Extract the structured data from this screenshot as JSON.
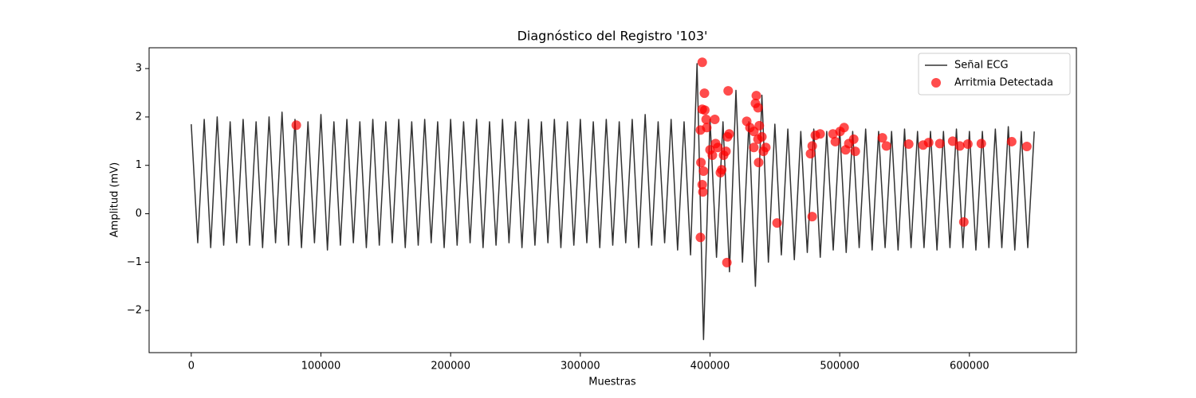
{
  "chart_data": {
    "type": "line",
    "title": "Diagnóstico del Registro '103'",
    "xlabel": "Muestras",
    "ylabel": "Amplitud (mV)",
    "xlim": [
      -32500,
      682500
    ],
    "ylim": [
      -2.87,
      3.43
    ],
    "xticks": [
      0,
      100000,
      200000,
      300000,
      400000,
      500000,
      600000
    ],
    "yticks": [
      {
        "value": -2,
        "label": "−2"
      },
      {
        "value": -1,
        "label": "−1"
      },
      0,
      1,
      2,
      3
    ],
    "grid": false,
    "legend": "upper right",
    "series": [
      {
        "name": "Señal ECG",
        "type": "line",
        "color": "#333333",
        "x": [
          0,
          5000,
          10000,
          15000,
          20000,
          25000,
          30000,
          35000,
          40000,
          45000,
          50000,
          55000,
          60000,
          65000,
          70000,
          75000,
          80000,
          85000,
          90000,
          95000,
          100000,
          105000,
          110000,
          115000,
          120000,
          125000,
          130000,
          135000,
          140000,
          145000,
          150000,
          155000,
          160000,
          165000,
          170000,
          175000,
          180000,
          185000,
          190000,
          195000,
          200000,
          205000,
          210000,
          215000,
          220000,
          225000,
          230000,
          235000,
          240000,
          245000,
          250000,
          255000,
          260000,
          265000,
          270000,
          275000,
          280000,
          285000,
          290000,
          295000,
          300000,
          305000,
          310000,
          315000,
          320000,
          325000,
          330000,
          335000,
          340000,
          345000,
          350000,
          355000,
          360000,
          365000,
          370000,
          375000,
          380000,
          385000,
          390000,
          395000,
          400000,
          405000,
          410000,
          415000,
          420000,
          425000,
          430000,
          435000,
          440000,
          445000,
          450000,
          455000,
          460000,
          465000,
          470000,
          475000,
          480000,
          485000,
          490000,
          495000,
          500000,
          505000,
          510000,
          515000,
          520000,
          525000,
          530000,
          535000,
          540000,
          545000,
          550000,
          555000,
          560000,
          565000,
          570000,
          575000,
          580000,
          585000,
          590000,
          595000,
          600000,
          605000,
          610000,
          615000,
          620000,
          625000,
          630000,
          635000,
          640000,
          645000,
          650000
        ],
        "values": [
          1.85,
          -0.6,
          1.95,
          -0.7,
          2.0,
          -0.65,
          1.9,
          -0.6,
          1.95,
          -0.65,
          1.9,
          -0.7,
          2.0,
          -0.6,
          2.1,
          -0.65,
          1.95,
          -0.7,
          1.9,
          -0.6,
          2.05,
          -0.75,
          1.9,
          -0.65,
          1.95,
          -0.6,
          1.9,
          -0.7,
          1.95,
          -0.65,
          1.9,
          -0.6,
          1.95,
          -0.7,
          1.9,
          -0.65,
          1.95,
          -0.6,
          1.9,
          -0.7,
          1.95,
          -0.65,
          1.9,
          -0.6,
          1.95,
          -0.7,
          1.9,
          -0.65,
          1.95,
          -0.6,
          1.9,
          -0.7,
          1.95,
          -0.65,
          1.9,
          -0.6,
          1.95,
          -0.7,
          1.9,
          -0.65,
          1.95,
          -0.6,
          1.9,
          -0.7,
          1.95,
          -0.65,
          1.9,
          -0.6,
          1.95,
          -0.7,
          2.05,
          -0.65,
          1.9,
          -0.6,
          1.95,
          -0.75,
          1.9,
          -0.85,
          3.1,
          -2.6,
          1.95,
          -0.9,
          1.9,
          -1.2,
          2.55,
          -1.0,
          1.9,
          -1.5,
          2.45,
          -1.0,
          1.85,
          -0.85,
          1.75,
          -0.95,
          1.7,
          -0.8,
          1.75,
          -0.9,
          1.7,
          -0.75,
          1.75,
          -0.8,
          1.7,
          -0.7,
          1.75,
          -0.75,
          1.7,
          -0.7,
          1.7,
          -0.75,
          1.75,
          -0.7,
          1.7,
          -0.7,
          1.7,
          -0.75,
          1.7,
          -0.7,
          1.75,
          -0.7,
          1.7,
          -0.75,
          1.7,
          -0.7,
          1.75,
          -0.7,
          1.8,
          -0.75,
          1.7,
          -0.7,
          1.7
        ]
      },
      {
        "name": "Arritmia Detectada",
        "type": "scatter",
        "color": "#ff0000",
        "x": [
          81000,
          394000,
          395700,
          394000,
          396000,
          392600,
          397500,
          397000,
          393000,
          395000,
          394000,
          394500,
          392600,
          403700,
          400000,
          401800,
          404300,
          406000,
          408000,
          409000,
          410500,
          412300,
          413500,
          414000,
          413000,
          414800,
          428300,
          430800,
          433800,
          435700,
          435000,
          437000,
          438000,
          437000,
          433800,
          437500,
          441200,
          443000,
          440000,
          451700,
          478800,
          477500,
          478800,
          481200,
          484900,
          494800,
          496600,
          500300,
          503400,
          504600,
          507000,
          510800,
          512000,
          532900,
          536000,
          553200,
          564300,
          568600,
          577200,
          587100,
          592600,
          598800,
          595700,
          609200,
          632600,
          644300
        ],
        "values": [
          1.83,
          3.13,
          2.49,
          2.16,
          2.14,
          1.73,
          1.78,
          1.95,
          1.06,
          0.88,
          0.6,
          0.45,
          -0.49,
          1.95,
          1.32,
          1.21,
          1.45,
          1.37,
          0.85,
          0.91,
          1.21,
          1.29,
          1.59,
          2.54,
          -1.01,
          1.65,
          1.91,
          1.78,
          1.7,
          2.44,
          2.28,
          2.19,
          1.82,
          1.54,
          1.37,
          1.06,
          1.29,
          1.37,
          1.59,
          -0.19,
          -0.06,
          1.24,
          1.4,
          1.62,
          1.65,
          1.65,
          1.49,
          1.7,
          1.78,
          1.32,
          1.45,
          1.54,
          1.29,
          1.57,
          1.4,
          1.44,
          1.42,
          1.47,
          1.45,
          1.5,
          1.4,
          1.44,
          -0.17,
          1.45,
          1.49,
          1.39
        ]
      }
    ]
  }
}
